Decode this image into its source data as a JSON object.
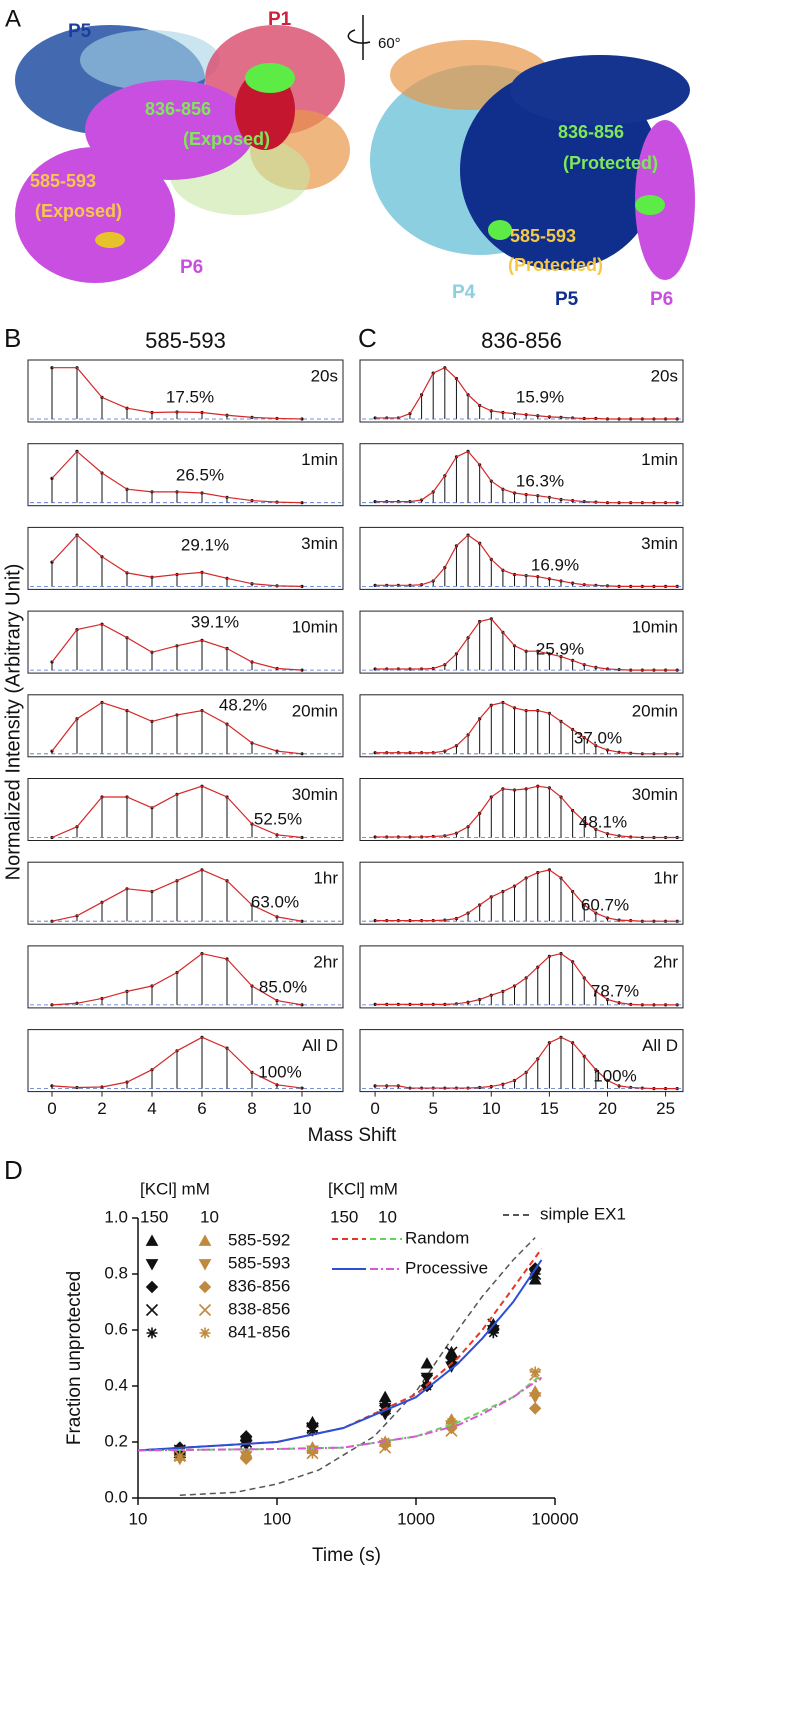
{
  "panel_a": {
    "label": "A",
    "rotation": "60°",
    "left": {
      "p5": "P5",
      "p1": "P1",
      "pep1": "836-856",
      "pep1_state": "(Exposed)",
      "pep2": "585-593",
      "pep2_state": "(Exposed)",
      "p6": "P6"
    },
    "right": {
      "pep1": "836-856",
      "pep1_state": "(Protected)",
      "pep2": "585-593",
      "pep2_state": "(Protected)",
      "p4": "P4",
      "p5": "P5",
      "p6": "P6"
    }
  },
  "chart_data": [
    {
      "type": "spectra",
      "panel_label": "B",
      "title": "585-593",
      "ylabel": "Normalized Intensity (Arbitrary Unit)",
      "xlabel": "Mass Shift",
      "x": [
        0,
        1,
        2,
        3,
        4,
        5,
        6,
        7,
        8,
        9,
        10
      ],
      "xlim": [
        -0.96,
        11.64
      ],
      "xticks": [
        0,
        2,
        4,
        6,
        8,
        10
      ],
      "ylim": [
        0,
        1
      ],
      "color": "#d62728",
      "spectra": [
        {
          "time": "20s",
          "deuterated": 17.5,
          "deuterated_label": "17.5%",
          "values": [
            0.95,
            0.95,
            0.4,
            0.2,
            0.12,
            0.13,
            0.12,
            0.07,
            0.03,
            0.01,
            0
          ]
        },
        {
          "time": "1min",
          "deuterated": 26.5,
          "deuterated_label": "26.5%",
          "values": [
            0.45,
            0.95,
            0.55,
            0.25,
            0.2,
            0.2,
            0.18,
            0.1,
            0.04,
            0.01,
            0
          ]
        },
        {
          "time": "3min",
          "deuterated": 29.1,
          "deuterated_label": "29.1%",
          "values": [
            0.45,
            0.95,
            0.55,
            0.25,
            0.17,
            0.22,
            0.26,
            0.15,
            0.05,
            0.01,
            0
          ]
        },
        {
          "time": "10min",
          "deuterated": 39.1,
          "deuterated_label": "39.1%",
          "values": [
            0.15,
            0.75,
            0.85,
            0.6,
            0.33,
            0.45,
            0.55,
            0.4,
            0.15,
            0.03,
            0
          ]
        },
        {
          "time": "20min",
          "deuterated": 48.2,
          "deuterated_label": "48.2%",
          "values": [
            0.05,
            0.65,
            0.95,
            0.8,
            0.6,
            0.72,
            0.8,
            0.55,
            0.2,
            0.05,
            0
          ]
        },
        {
          "time": "30min",
          "deuterated": 52.5,
          "deuterated_label": "52.5%",
          "values": [
            0,
            0.2,
            0.75,
            0.75,
            0.55,
            0.8,
            0.95,
            0.75,
            0.25,
            0.05,
            0
          ]
        },
        {
          "time": "1hr",
          "deuterated": 63.0,
          "deuterated_label": "63.0%",
          "values": [
            0,
            0.1,
            0.35,
            0.6,
            0.55,
            0.75,
            0.95,
            0.75,
            0.3,
            0.08,
            0
          ]
        },
        {
          "time": "2hr",
          "deuterated": 85.0,
          "deuterated_label": "85.0%",
          "values": [
            0,
            0.03,
            0.12,
            0.25,
            0.35,
            0.6,
            0.95,
            0.85,
            0.35,
            0.08,
            0
          ]
        },
        {
          "time": "All D",
          "deuterated": 100,
          "deuterated_label": "100%",
          "values": [
            0.05,
            0.02,
            0.03,
            0.12,
            0.35,
            0.7,
            0.95,
            0.75,
            0.3,
            0.07,
            0.01
          ]
        }
      ]
    },
    {
      "type": "spectra",
      "panel_label": "C",
      "title": "836-856",
      "x": [
        0,
        1,
        2,
        3,
        4,
        5,
        6,
        7,
        8,
        9,
        10,
        11,
        12,
        13,
        14,
        15,
        16,
        17,
        18,
        19,
        20,
        21,
        22,
        23,
        24,
        25,
        26
      ],
      "xlim": [
        -1.3,
        26.5
      ],
      "xticks": [
        0,
        5,
        10,
        15,
        20,
        25
      ],
      "ylim": [
        0,
        1
      ],
      "color": "#d62728",
      "spectra": [
        {
          "time": "20s",
          "deuterated": 15.9,
          "deuterated_label": "15.9%",
          "values": [
            0.02,
            0.02,
            0.02,
            0.1,
            0.45,
            0.85,
            0.95,
            0.75,
            0.45,
            0.25,
            0.15,
            0.12,
            0.1,
            0.08,
            0.06,
            0.04,
            0.03,
            0.02,
            0.01,
            0.01,
            0,
            0,
            0,
            0,
            0,
            0,
            0
          ]
        },
        {
          "time": "1min",
          "deuterated": 16.3,
          "deuterated_label": "16.3%",
          "values": [
            0.02,
            0.02,
            0.02,
            0.02,
            0.05,
            0.2,
            0.5,
            0.85,
            0.95,
            0.7,
            0.4,
            0.25,
            0.18,
            0.15,
            0.13,
            0.1,
            0.06,
            0.04,
            0.02,
            0.01,
            0,
            0,
            0,
            0,
            0,
            0,
            0
          ]
        },
        {
          "time": "3min",
          "deuterated": 16.9,
          "deuterated_label": "16.9%",
          "values": [
            0.02,
            0.02,
            0.02,
            0.02,
            0.03,
            0.1,
            0.35,
            0.75,
            0.95,
            0.8,
            0.5,
            0.3,
            0.22,
            0.2,
            0.18,
            0.14,
            0.1,
            0.06,
            0.03,
            0.02,
            0.01,
            0,
            0,
            0,
            0,
            0,
            0
          ]
        },
        {
          "time": "10min",
          "deuterated": 25.9,
          "deuterated_label": "25.9%",
          "values": [
            0.02,
            0.02,
            0.02,
            0.02,
            0.02,
            0.03,
            0.1,
            0.3,
            0.6,
            0.9,
            0.95,
            0.7,
            0.45,
            0.35,
            0.35,
            0.3,
            0.25,
            0.18,
            0.1,
            0.05,
            0.02,
            0.01,
            0,
            0,
            0,
            0,
            0
          ]
        },
        {
          "time": "20min",
          "deuterated": 37.0,
          "deuterated_label": "37.0%",
          "values": [
            0.02,
            0.02,
            0.02,
            0.02,
            0.02,
            0.02,
            0.05,
            0.15,
            0.35,
            0.65,
            0.9,
            0.95,
            0.85,
            0.8,
            0.8,
            0.75,
            0.6,
            0.45,
            0.3,
            0.15,
            0.07,
            0.03,
            0.01,
            0,
            0,
            0,
            0
          ]
        },
        {
          "time": "30min",
          "deuterated": 48.1,
          "deuterated_label": "48.1%",
          "values": [
            0.01,
            0.01,
            0.01,
            0.01,
            0.01,
            0.02,
            0.03,
            0.08,
            0.2,
            0.45,
            0.75,
            0.9,
            0.88,
            0.9,
            0.95,
            0.92,
            0.75,
            0.5,
            0.3,
            0.15,
            0.07,
            0.03,
            0.01,
            0,
            0,
            0,
            0
          ]
        },
        {
          "time": "1hr",
          "deuterated": 60.7,
          "deuterated_label": "60.7%",
          "values": [
            0.01,
            0.01,
            0.01,
            0.01,
            0.01,
            0.01,
            0.02,
            0.05,
            0.15,
            0.3,
            0.45,
            0.55,
            0.65,
            0.8,
            0.9,
            0.95,
            0.8,
            0.55,
            0.3,
            0.15,
            0.06,
            0.02,
            0.01,
            0,
            0,
            0,
            0
          ]
        },
        {
          "time": "2hr",
          "deuterated": 78.7,
          "deuterated_label": "78.7%",
          "values": [
            0.01,
            0.01,
            0.01,
            0.01,
            0.01,
            0.01,
            0.01,
            0.02,
            0.05,
            0.1,
            0.18,
            0.25,
            0.35,
            0.5,
            0.7,
            0.9,
            0.95,
            0.8,
            0.5,
            0.25,
            0.1,
            0.04,
            0.01,
            0,
            0,
            0,
            0
          ]
        },
        {
          "time": "All D",
          "deuterated": 100,
          "deuterated_label": "100%",
          "values": [
            0.05,
            0.05,
            0.05,
            0.01,
            0.01,
            0.01,
            0.01,
            0.01,
            0.01,
            0.02,
            0.04,
            0.08,
            0.15,
            0.3,
            0.55,
            0.85,
            0.95,
            0.85,
            0.6,
            0.35,
            0.15,
            0.05,
            0.02,
            0.01,
            0,
            0,
            0
          ]
        }
      ]
    },
    {
      "type": "kinetics",
      "panel_label": "D",
      "xlabel": "Time (s)",
      "ylabel": "Fraction unprotected",
      "xscale": "log",
      "xlim": [
        10,
        10000
      ],
      "xticks": [
        10,
        100,
        1000,
        10000
      ],
      "ylim": [
        0,
        1
      ],
      "yticks": [
        {
          "value": 0,
          "label": "0.0"
        },
        {
          "value": 0.2,
          "label": "0.2"
        },
        {
          "value": 0.4,
          "label": "0.4"
        },
        {
          "value": 0.6,
          "label": "0.6"
        },
        {
          "value": 0.8,
          "label": "0.8"
        },
        {
          "value": 1,
          "label": "1.0"
        }
      ],
      "legend_title": "[KCl] mM",
      "legend_columns": [
        "150",
        "10"
      ],
      "colors": [
        "#111111",
        "#c08a3e"
      ],
      "series": [
        {
          "name": "585-592",
          "marker": "triangle-up",
          "x_150": [
            20,
            60,
            180,
            600,
            1200,
            1800,
            3600,
            7200
          ],
          "values_150": [
            0.16,
            0.22,
            0.27,
            0.36,
            0.48,
            0.52,
            0.62,
            0.78
          ],
          "x_10": [
            20,
            60,
            180,
            600,
            1800,
            7200
          ],
          "values_10": [
            0.15,
            0.16,
            0.18,
            0.2,
            0.28,
            0.38
          ]
        },
        {
          "name": "585-593",
          "marker": "triangle-down",
          "x_150": [
            20,
            60,
            180,
            600,
            1200,
            1800,
            3600,
            7200
          ],
          "values_150": [
            0.15,
            0.19,
            0.25,
            0.3,
            0.43,
            0.47,
            0.6,
            0.8
          ],
          "x_10": [
            20,
            60,
            180,
            600,
            1800,
            7200
          ],
          "values_10": [
            0.14,
            0.15,
            0.17,
            0.19,
            0.26,
            0.36
          ]
        },
        {
          "name": "836-856",
          "marker": "diamond",
          "x_150": [
            20,
            60,
            180,
            600,
            1200,
            1800,
            3600,
            7200
          ],
          "values_150": [
            0.18,
            0.22,
            0.26,
            0.33,
            0.4,
            0.5,
            0.6,
            0.82
          ],
          "x_10": [
            20,
            60,
            180,
            600,
            1800,
            7200
          ],
          "values_10": [
            0.16,
            0.14,
            0.17,
            0.19,
            0.25,
            0.32
          ]
        },
        {
          "name": "838-856",
          "marker": "cross",
          "x_150": [
            20,
            60,
            180,
            600,
            1200,
            1800,
            3600,
            7200
          ],
          "values_150": [
            0.17,
            0.2,
            0.25,
            0.32,
            0.42,
            0.52,
            0.62,
            0.8
          ],
          "x_10": [
            20,
            60,
            180,
            600,
            1800,
            7200
          ],
          "values_10": [
            0.15,
            0.16,
            0.16,
            0.18,
            0.24,
            0.44
          ]
        },
        {
          "name": "841-856",
          "marker": "asterisk",
          "x_150": [
            20,
            60,
            180,
            600,
            1200,
            1800,
            3600,
            7200
          ],
          "values_150": [
            0.16,
            0.21,
            0.24,
            0.31,
            0.4,
            0.5,
            0.59,
            0.8
          ],
          "x_10": [
            20,
            60,
            180,
            600,
            1800,
            7200
          ],
          "values_10": [
            0.15,
            0.15,
            0.16,
            0.2,
            0.27,
            0.45
          ]
        }
      ],
      "models": [
        {
          "name": "Random",
          "dash": "6 4",
          "colors": [
            "#e8352a",
            "#5fd65a"
          ],
          "x": [
            10,
            100,
            300,
            1000,
            2000,
            3000,
            5000,
            8000
          ],
          "values_150": [
            0.17,
            0.2,
            0.25,
            0.37,
            0.5,
            0.6,
            0.75,
            0.89
          ],
          "values_10": [
            0.17,
            0.175,
            0.18,
            0.22,
            0.27,
            0.31,
            0.36,
            0.44
          ]
        },
        {
          "name": "Processive",
          "dash": "none",
          "colors": [
            "#2d4fd6",
            "#d65ad6"
          ],
          "x": [
            10,
            100,
            300,
            1000,
            2000,
            3000,
            5000,
            8000
          ],
          "values_150": [
            0.17,
            0.2,
            0.25,
            0.36,
            0.48,
            0.57,
            0.7,
            0.85
          ],
          "values_10": [
            0.17,
            0.175,
            0.18,
            0.22,
            0.26,
            0.3,
            0.36,
            0.43
          ]
        }
      ],
      "reference": {
        "name": "simple EX1",
        "color": "#555555",
        "x": [
          20,
          50,
          100,
          200,
          500,
          1000,
          2000,
          3000,
          5000,
          7200
        ],
        "values": [
          0.01,
          0.02,
          0.05,
          0.1,
          0.22,
          0.38,
          0.6,
          0.72,
          0.85,
          0.93
        ]
      }
    }
  ]
}
